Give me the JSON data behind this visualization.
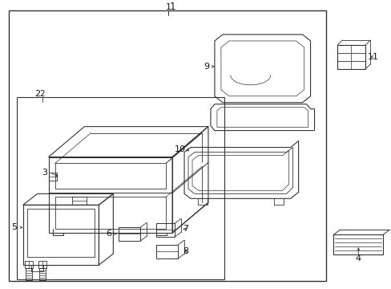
{
  "background": "#ffffff",
  "line_color": "#333333",
  "label_color": "#111111",
  "lw": 0.7
}
